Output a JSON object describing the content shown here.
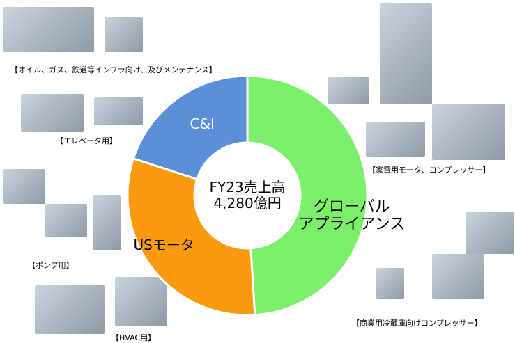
{
  "chart_data": {
    "type": "pie",
    "donut": true,
    "categories": [
      "グローバル\nアプライアンス",
      "USモータ",
      "C&I"
    ],
    "values": [
      49,
      31,
      20
    ],
    "colors": [
      "#7cf06a",
      "#fb9a0e",
      "#5b8fd6"
    ],
    "label_colors": [
      "#000000",
      "#000000",
      "#ffffff"
    ],
    "center_label": "FY23売上高\n4,280億円",
    "annotations": [
      "【オイル、ガス、鉄道等インフラ向け、及びメンテナンス】",
      "【エレベータ用】",
      "【ポンプ用】",
      "【HVAC用】",
      "【家電用モータ、コンプレッサー】",
      "【商業用冷蔵庫向けコンプレッサー】"
    ]
  }
}
